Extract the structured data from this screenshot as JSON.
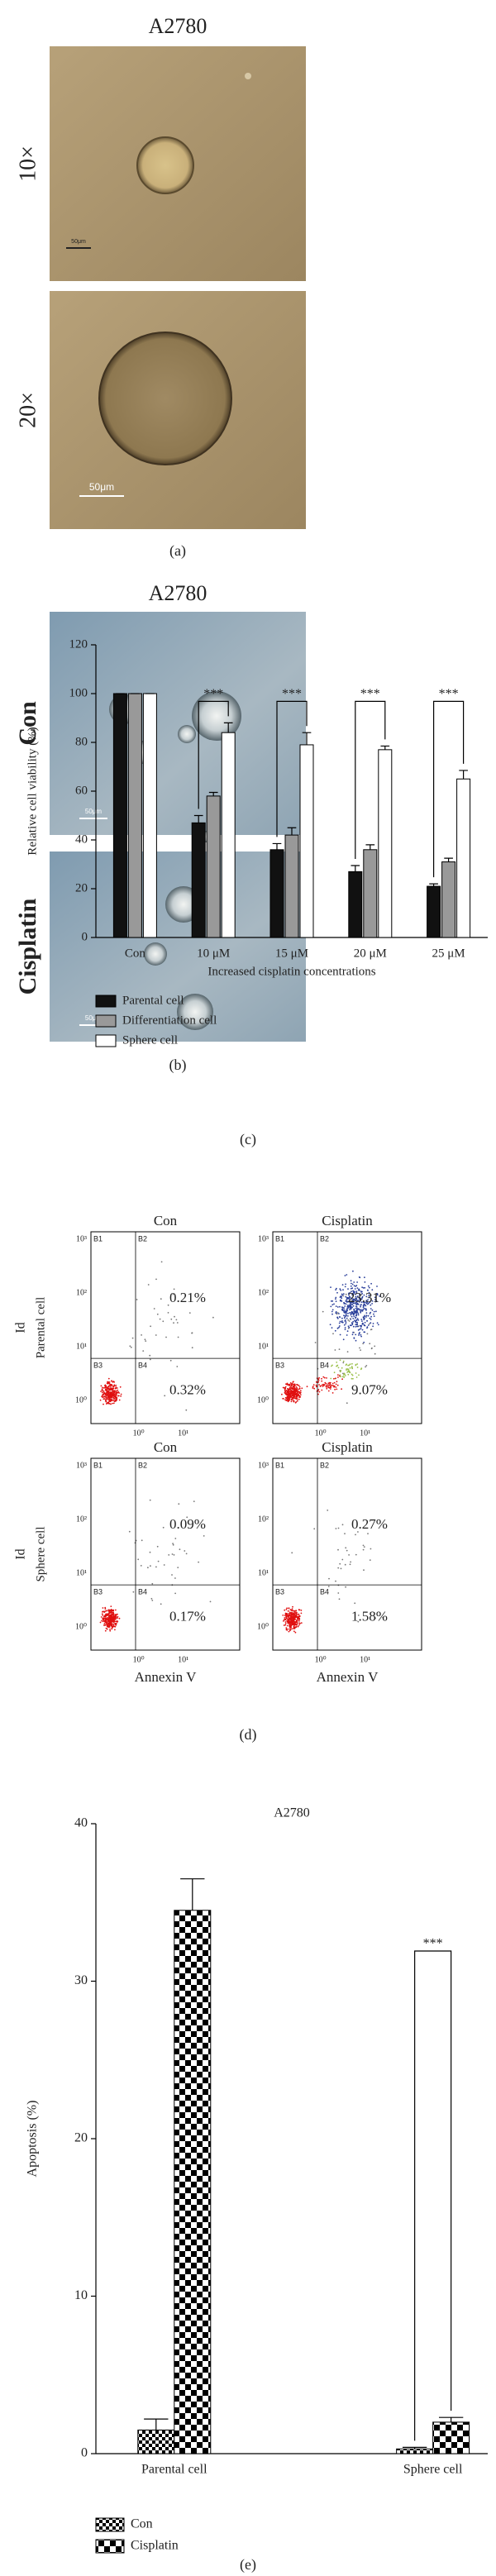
{
  "panel_a": {
    "title": "A2780",
    "rows": [
      "10×",
      "20×"
    ],
    "scale_bars": [
      "50μm",
      "50μm"
    ],
    "label": "(a)"
  },
  "panel_b": {
    "title": "A2780",
    "rows": [
      "Con",
      "Cisplatin"
    ],
    "scale_bars": [
      "50μm",
      "50μm"
    ],
    "label": "(b)"
  },
  "chart_data": [
    {
      "type": "bar",
      "panel_label": "(c)",
      "categories": [
        "Con",
        "10 μM",
        "15 μM",
        "20 μM",
        "25 μM"
      ],
      "series": [
        {
          "name": "Parental cell",
          "color": "#111111",
          "values": [
            100,
            47,
            36,
            27,
            21
          ],
          "errors": [
            0,
            3,
            2.5,
            2.5,
            1
          ]
        },
        {
          "name": "Differentiation cell",
          "color": "#999999",
          "values": [
            100,
            58,
            42,
            36,
            31
          ],
          "errors": [
            0,
            1.5,
            3,
            2,
            1.5
          ]
        },
        {
          "name": "Sphere cell",
          "color": "#ffffff",
          "values": [
            100,
            84,
            79,
            77,
            65
          ],
          "errors": [
            0,
            4,
            5,
            1.5,
            3.5
          ]
        }
      ],
      "annotations": [
        "***",
        "***",
        "***",
        "***"
      ],
      "ylabel": "Relative cell viability (%)",
      "xlabel": "Increased cisplatin concentrations",
      "ylim": [
        0,
        120
      ],
      "yticks": [
        0,
        20,
        40,
        60,
        80,
        100,
        120
      ],
      "legend": "bottom-left"
    },
    {
      "type": "bar",
      "panel_label": "(e)",
      "title": "A2780",
      "categories": [
        "Parental cell",
        "Sphere cell"
      ],
      "series": [
        {
          "name": "Con",
          "pattern": "fine-checker",
          "values": [
            1.5,
            0.3
          ],
          "errors": [
            0.7,
            0.1
          ]
        },
        {
          "name": "Cisplatin",
          "pattern": "coarse-checker",
          "values": [
            34.5,
            2.0
          ],
          "errors": [
            2,
            0.3
          ]
        }
      ],
      "annotations": [
        "***"
      ],
      "ylabel": "Apoptosis (%)",
      "ylim": [
        0,
        40
      ],
      "yticks": [
        0,
        10,
        20,
        30,
        40
      ],
      "legend": "bottom-left"
    }
  ],
  "panel_d": {
    "columns": [
      "Con",
      "Cisplatin"
    ],
    "rows": [
      {
        "label": "Parental cell",
        "percentages": [
          [
            "0.21%",
            "0.32%"
          ],
          [
            "23.31%",
            "9.07%"
          ]
        ]
      },
      {
        "label": "Sphere cell",
        "percentages": [
          [
            "0.09%",
            "0.17%"
          ],
          [
            "0.27%",
            "1.58%"
          ]
        ]
      }
    ],
    "ylabel": "Id",
    "xlabel": "Annexin V",
    "quadrants": [
      "B1",
      "B2",
      "B3",
      "B4"
    ],
    "ticks": [
      "10⁰",
      "10¹",
      "10²",
      "10³"
    ],
    "label": "(d)"
  }
}
